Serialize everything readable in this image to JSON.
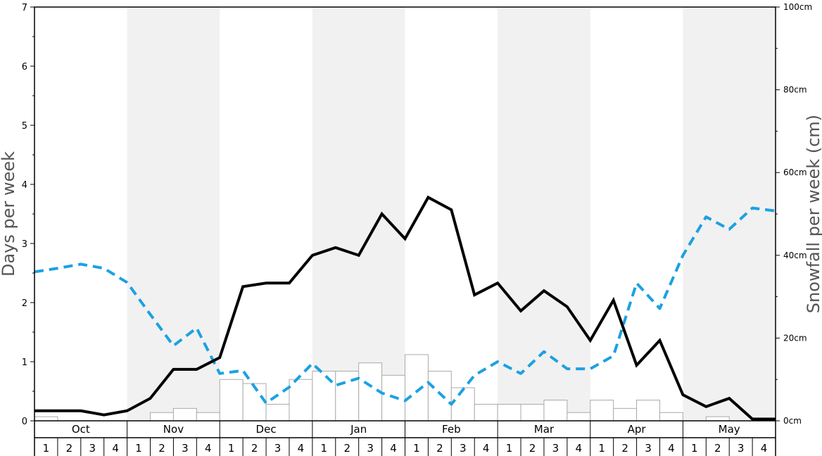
{
  "chart_data": {
    "type": "bar+line",
    "months": [
      "Oct",
      "Nov",
      "Dec",
      "Jan",
      "Feb",
      "Mar",
      "Apr",
      "May"
    ],
    "weeks_per_month": [
      "1",
      "2",
      "3",
      "4"
    ],
    "y_left": {
      "label": "Days per week",
      "range": [
        0,
        7
      ],
      "ticks": [
        "0",
        "1",
        "2",
        "3",
        "4",
        "5",
        "6",
        "7"
      ]
    },
    "y_right": {
      "label": "Snowfall per week (cm)",
      "range": [
        0,
        100
      ],
      "ticks": [
        "0cm",
        "20cm",
        "40cm",
        "60cm",
        "80cm",
        "100cm"
      ],
      "tick_values": [
        0,
        20,
        40,
        60,
        80,
        100
      ]
    },
    "series": [
      {
        "kind": "bar",
        "axis": "right",
        "values": [
          1,
          0,
          0,
          0,
          0,
          2,
          3,
          2,
          10,
          9,
          4,
          10,
          12,
          12,
          14,
          11,
          16,
          12,
          8,
          4,
          4,
          4,
          5,
          2,
          5,
          3,
          5,
          2,
          0,
          1,
          0,
          0
        ]
      },
      {
        "kind": "line",
        "axis": "left",
        "values": [
          0.17,
          0.17,
          0.17,
          0.1,
          0.17,
          0.38,
          0.87,
          0.87,
          1.07,
          2.27,
          2.33,
          2.33,
          2.8,
          2.93,
          2.8,
          3.5,
          3.08,
          3.78,
          3.57,
          2.13,
          2.33,
          1.86,
          2.2,
          1.93,
          1.36,
          2.04,
          0.94,
          1.36,
          0.44,
          0.24,
          0.38,
          0.03,
          0.03
        ]
      },
      {
        "kind": "dashed-line",
        "axis": "left",
        "values": [
          2.52,
          2.58,
          2.65,
          2.58,
          2.34,
          1.8,
          1.27,
          1.57,
          0.8,
          0.85,
          0.3,
          0.57,
          0.97,
          0.6,
          0.72,
          0.47,
          0.34,
          0.65,
          0.28,
          0.77,
          1.0,
          0.8,
          1.17,
          0.88,
          0.88,
          1.1,
          2.33,
          1.9,
          2.8,
          3.45,
          3.24,
          3.6,
          3.55
        ]
      }
    ],
    "colors": {
      "line": "#000000",
      "dashed": "#1ba1e2",
      "bar_fill": "#ffffff",
      "bar_stroke": "#aaaaaa",
      "band_shade": "#f1f1f1"
    },
    "grid": false
  }
}
